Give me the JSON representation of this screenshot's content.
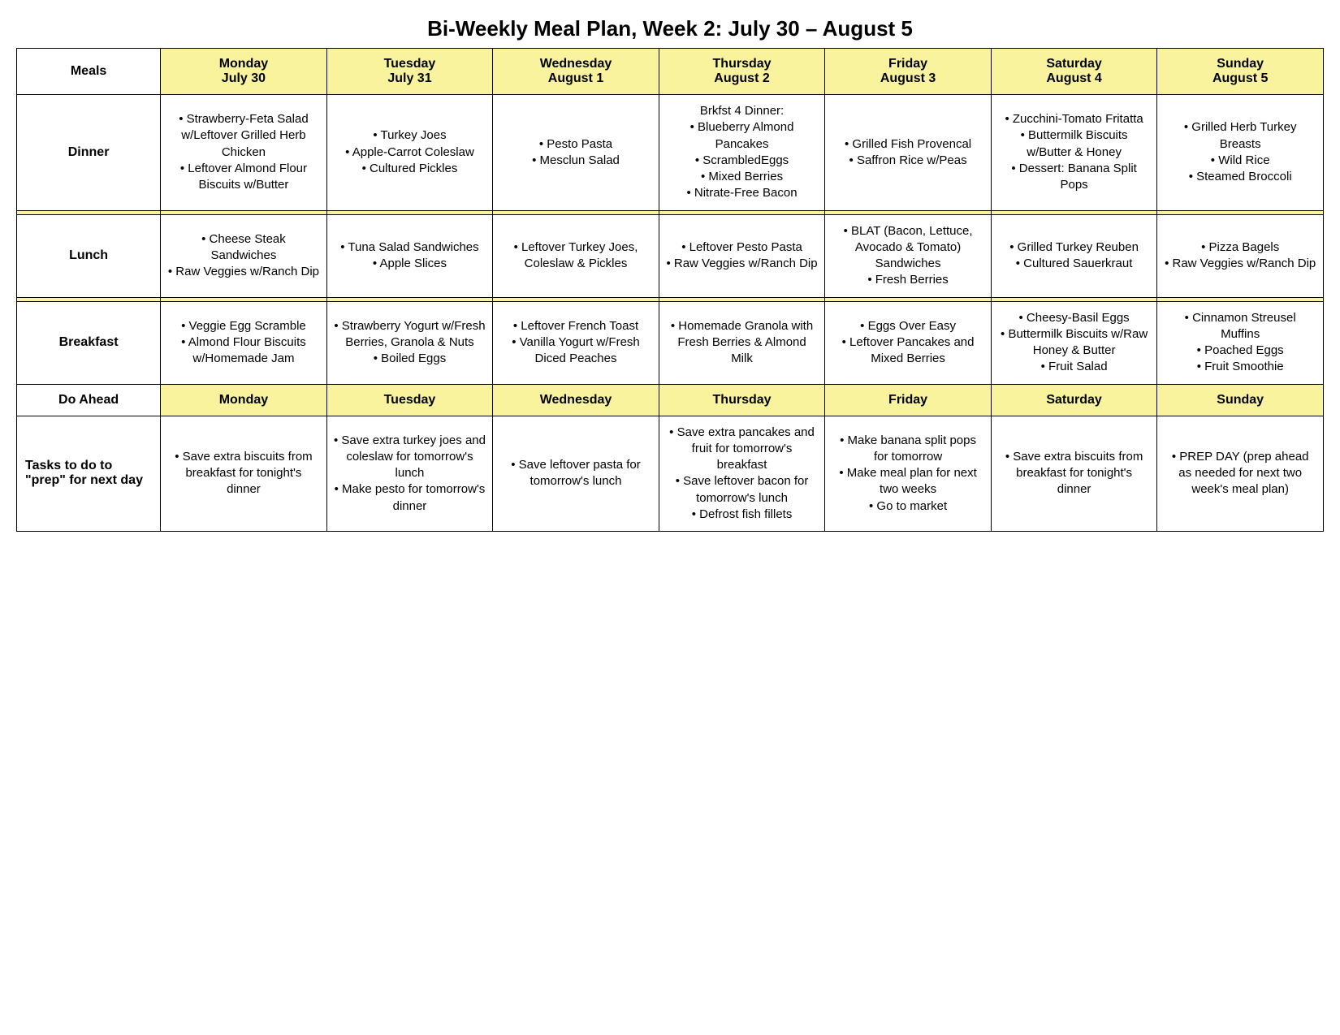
{
  "title": "Bi-Weekly Meal Plan, Week 2: July 30 – August 5",
  "colors": {
    "header_bg": "#f8f39c",
    "separator_bg": "#f8f39c",
    "border": "#000000",
    "background": "#ffffff"
  },
  "columns": {
    "row_label_header": "Meals",
    "days": [
      {
        "name": "Monday",
        "date": "July 30"
      },
      {
        "name": "Tuesday",
        "date": "July 31"
      },
      {
        "name": "Wednesday",
        "date": "August 1"
      },
      {
        "name": "Thursday",
        "date": "August 2"
      },
      {
        "name": "Friday",
        "date": "August 3"
      },
      {
        "name": "Saturday",
        "date": "August 4"
      },
      {
        "name": "Sunday",
        "date": "August 5"
      }
    ]
  },
  "rows": {
    "dinner": {
      "label": "Dinner",
      "cells": [
        [
          "• Strawberry-Feta Salad w/Leftover Grilled Herb Chicken",
          "• Leftover Almond Flour Biscuits w/Butter"
        ],
        [
          "• Turkey Joes",
          "• Apple-Carrot Coleslaw",
          "• Cultured Pickles"
        ],
        [
          "• Pesto Pasta",
          "• Mesclun Salad"
        ],
        [
          "Brkfst 4 Dinner:",
          "• Blueberry Almond Pancakes",
          "• ScrambledEggs",
          "• Mixed Berries",
          "• Nitrate-Free Bacon"
        ],
        [
          "• Grilled Fish Provencal",
          "• Saffron Rice w/Peas"
        ],
        [
          "• Zucchini-Tomato Fritatta",
          "• Buttermilk Biscuits w/Butter & Honey",
          "• Dessert: Banana Split Pops"
        ],
        [
          "• Grilled Herb Turkey Breasts",
          "• Wild Rice",
          "• Steamed Broccoli"
        ]
      ]
    },
    "lunch": {
      "label": "Lunch",
      "cells": [
        [
          "• Cheese Steak Sandwiches",
          "• Raw Veggies w/Ranch Dip"
        ],
        [
          "• Tuna Salad Sandwiches",
          "• Apple Slices"
        ],
        [
          "• Leftover Turkey Joes, Coleslaw & Pickles"
        ],
        [
          "• Leftover Pesto Pasta",
          "• Raw Veggies w/Ranch Dip"
        ],
        [
          "• BLAT (Bacon, Lettuce, Avocado & Tomato) Sandwiches",
          "• Fresh Berries"
        ],
        [
          "• Grilled Turkey Reuben",
          "• Cultured Sauerkraut"
        ],
        [
          "• Pizza Bagels",
          "• Raw Veggies w/Ranch Dip"
        ]
      ]
    },
    "breakfast": {
      "label": "Breakfast",
      "cells": [
        [
          "• Veggie Egg Scramble",
          "• Almond Flour Biscuits w/Homemade Jam"
        ],
        [
          "• Strawberry Yogurt w/Fresh Berries, Granola & Nuts",
          "• Boiled Eggs"
        ],
        [
          "• Leftover French Toast",
          "• Vanilla Yogurt w/Fresh Diced Peaches"
        ],
        [
          "• Homemade Granola with Fresh Berries & Almond Milk"
        ],
        [
          "• Eggs Over Easy",
          "• Leftover Pancakes and Mixed Berries"
        ],
        [
          "• Cheesy-Basil Eggs",
          "• Buttermilk Biscuits w/Raw Honey & Butter",
          "• Fruit Salad"
        ],
        [
          "• Cinnamon Streusel Muffins",
          "• Poached Eggs",
          "• Fruit Smoothie"
        ]
      ]
    }
  },
  "do_ahead_header": {
    "label": "Do Ahead",
    "days": [
      "Monday",
      "Tuesday",
      "Wednesday",
      "Thursday",
      "Friday",
      "Saturday",
      "Sunday"
    ]
  },
  "tasks": {
    "label": "Tasks to do to \"prep\" for next day",
    "cells": [
      [
        "• Save extra biscuits from breakfast for tonight's dinner"
      ],
      [
        "• Save extra turkey joes and coleslaw for tomorrow's lunch",
        "• Make pesto for tomorrow's dinner"
      ],
      [
        "• Save leftover pasta for tomorrow's lunch"
      ],
      [
        "• Save extra pancakes and fruit for tomorrow's breakfast",
        "• Save leftover bacon for tomorrow's lunch",
        "• Defrost fish fillets"
      ],
      [
        "• Make banana split pops for tomorrow",
        "• Make meal plan for next two weeks",
        "• Go to market"
      ],
      [
        "• Save extra biscuits from breakfast for tonight's dinner"
      ],
      [
        "• PREP DAY (prep ahead as needed for next two week's meal plan)"
      ]
    ]
  }
}
